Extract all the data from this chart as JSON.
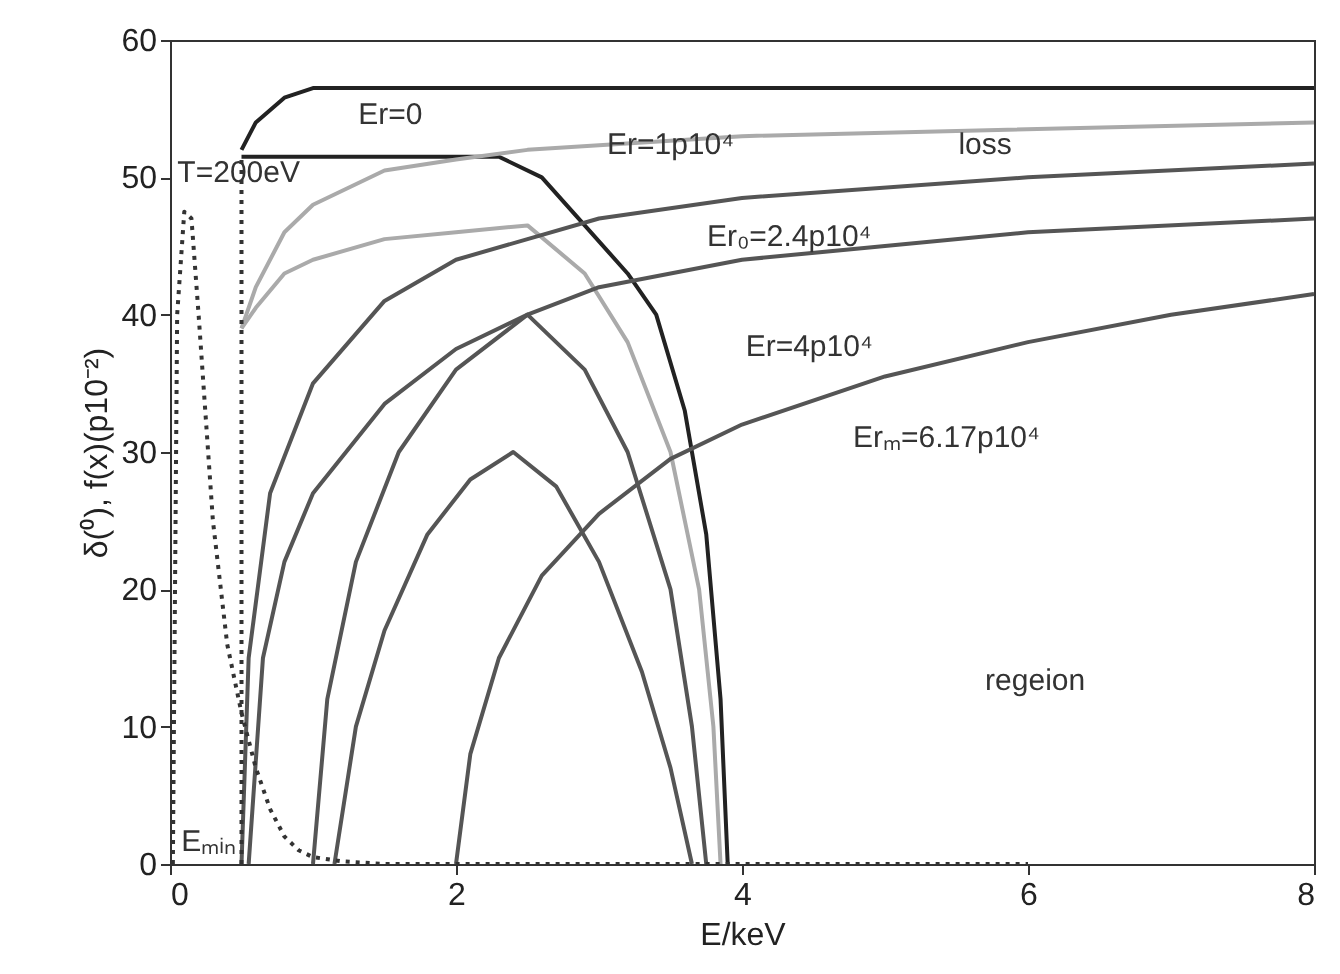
{
  "chart_data": {
    "type": "line",
    "xlabel": "E/keV",
    "ylabel": "δ(⁰), f(x)(p10⁻²)",
    "xlim": [
      0,
      8
    ],
    "ylim": [
      0,
      60
    ],
    "xticks": [
      0,
      2,
      4,
      6,
      8
    ],
    "yticks": [
      0,
      10,
      20,
      30,
      40,
      50,
      60
    ],
    "grid": false,
    "legend": false,
    "marker": "none",
    "series": [
      {
        "color": "#222222",
        "x": [
          0.5,
          0.6,
          0.8,
          1.0,
          8
        ],
        "values": [
          52,
          54,
          55.8,
          56.5,
          56.5
        ]
      },
      {
        "color": "#222222",
        "x": [
          0.5,
          2.3,
          2.6,
          2.9,
          3.2,
          3.4,
          3.6,
          3.75,
          3.85,
          3.9
        ],
        "values": [
          51.5,
          51.5,
          50,
          46.5,
          43,
          40,
          33,
          24,
          12,
          0
        ]
      },
      {
        "color": "#aaaaaa",
        "x": [
          0.5,
          0.6,
          0.8,
          1.0,
          1.5,
          2.0,
          2.5,
          4,
          8
        ],
        "values": [
          39,
          42,
          46,
          48,
          50.5,
          51.3,
          52,
          53,
          54
        ]
      },
      {
        "color": "#aaaaaa",
        "x": [
          0.5,
          0.6,
          0.8,
          1.0,
          1.5,
          2.0,
          2.5,
          2.9,
          3.2,
          3.5,
          3.7,
          3.8,
          3.85
        ],
        "values": [
          39,
          40.5,
          43,
          44,
          45.5,
          46,
          46.5,
          43,
          38,
          30,
          20,
          10,
          0
        ]
      },
      {
        "color": "#555555",
        "x": [
          0.5,
          0.55,
          0.7,
          1.0,
          1.5,
          2.0,
          2.5,
          3,
          4,
          6,
          8
        ],
        "values": [
          0,
          15,
          27,
          35,
          41,
          44,
          45.5,
          47,
          48.5,
          50,
          51
        ]
      },
      {
        "color": "#555555",
        "x": [
          1.0,
          1.1,
          1.3,
          1.6,
          2.0,
          2.5,
          2.9,
          3.2,
          3.5,
          3.65,
          3.75
        ],
        "values": [
          0,
          12,
          22,
          30,
          36,
          40,
          36,
          30,
          20,
          10,
          0
        ]
      },
      {
        "color": "#555555",
        "x": [
          0.55,
          0.65,
          0.8,
          1.0,
          1.5,
          2.0,
          2.5,
          3,
          4,
          6,
          8
        ],
        "values": [
          0,
          15,
          22,
          27,
          33.5,
          37.5,
          40,
          42,
          44,
          46,
          47
        ]
      },
      {
        "color": "#555555",
        "x": [
          1.15,
          1.3,
          1.5,
          1.8,
          2.1,
          2.4,
          2.7,
          3.0,
          3.3,
          3.5,
          3.65
        ],
        "values": [
          0,
          10,
          17,
          24,
          28,
          30,
          27.5,
          22,
          14,
          7,
          0
        ]
      },
      {
        "color": "#555555",
        "x": [
          2.0,
          2.1,
          2.3,
          2.6,
          3,
          3.5,
          4,
          5,
          6,
          7,
          8
        ],
        "values": [
          0,
          8,
          15,
          21,
          25.5,
          29.5,
          32,
          35.5,
          38,
          40,
          41.5
        ]
      },
      {
        "color": "#333333",
        "line_style": "dotted",
        "x": [
          0.02,
          0.05,
          0.1,
          0.15,
          0.2,
          0.3,
          0.4,
          0.5,
          0.6,
          0.7,
          0.8,
          0.9,
          1.0,
          1.2,
          1.5,
          6
        ],
        "values": [
          0,
          40,
          47.5,
          47,
          40,
          25,
          16,
          11,
          7,
          4,
          2,
          1,
          0.5,
          0.2,
          0,
          0
        ]
      },
      {
        "color": "#333333",
        "line_style": "dotted",
        "x": [
          0.5,
          0.5
        ],
        "values": [
          0,
          51.5
        ]
      }
    ],
    "annotations": [
      "Er=0",
      {
        "text": "Er=1p10⁴",
        "x": 3.5,
        "y": 52.4
      },
      "loss",
      "Er₀=2.4p10⁴",
      "Er=4p10⁴",
      "Erₘ=6.17p10⁴",
      "regeion",
      {
        "text": "T=200eV",
        "x": 0.48,
        "y": 50.4
      },
      "Eₘᵢₙ"
    ]
  }
}
